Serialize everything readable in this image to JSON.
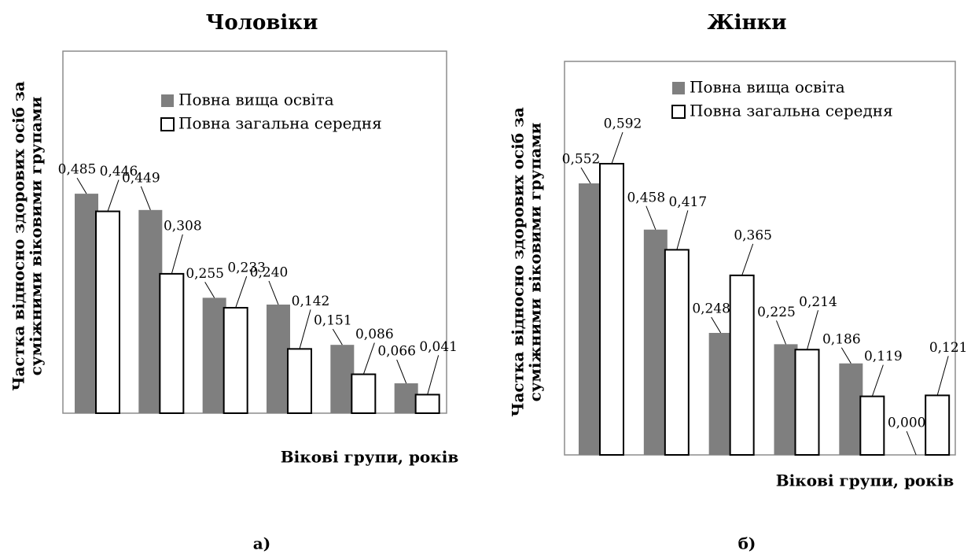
{
  "chart_data": [
    {
      "type": "bar",
      "title": "Чоловіки",
      "ylabel": [
        "Частка відносно здорових осіб за",
        "суміжними віковими групами"
      ],
      "xlabel": "Вікові групи, років",
      "caption": "а)",
      "categories": [
        null,
        null,
        null,
        null,
        null,
        null
      ],
      "series": [
        {
          "name": "Повна вища освіта",
          "color": "#7f7f7f",
          "values": [
            0.485,
            0.449,
            0.255,
            0.24,
            0.151,
            0.066
          ],
          "value_labels": [
            "0,485",
            "0,449",
            "0,255",
            "0,240",
            "0,151",
            "0,066"
          ]
        },
        {
          "name": "Повна загальна середня",
          "color": "#ffffff",
          "values": [
            0.446,
            0.308,
            0.233,
            0.142,
            0.086,
            0.041
          ],
          "value_labels": [
            "0,446",
            "0,308",
            "0,233",
            "0,142",
            "0,086",
            "0,041"
          ]
        }
      ],
      "ylim": [
        0,
        0.8
      ]
    },
    {
      "type": "bar",
      "title": "Жінки",
      "ylabel": [
        "Частка відносно здорових осіб за",
        "суміжними віковими групами"
      ],
      "xlabel": "Вікові групи, років",
      "caption": "б)",
      "categories": [
        null,
        null,
        null,
        null,
        null,
        null
      ],
      "series": [
        {
          "name": "Повна вища освіта",
          "color": "#7f7f7f",
          "values": [
            0.552,
            0.458,
            0.248,
            0.225,
            0.186,
            0.0
          ],
          "value_labels": [
            "0,552",
            "0,458",
            "0,248",
            "0,225",
            "0,186",
            "0,000"
          ]
        },
        {
          "name": "Повна загальна середня",
          "color": "#ffffff",
          "values": [
            0.592,
            0.417,
            0.365,
            0.214,
            0.119,
            0.121
          ],
          "value_labels": [
            "0,592",
            "0,417",
            "0,365",
            "0,214",
            "0,119",
            "0,121"
          ]
        }
      ],
      "ylim": [
        0,
        0.8
      ]
    }
  ]
}
